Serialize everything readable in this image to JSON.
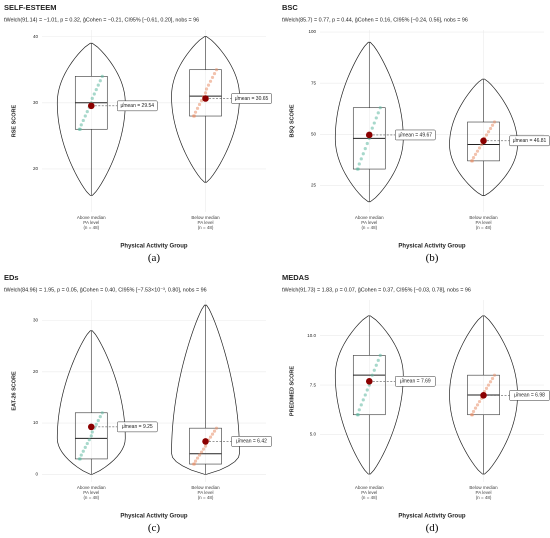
{
  "chart_data": [
    {
      "type": "violin",
      "title": "SELF-ESTEEM",
      "subtitle": "tWelch(91.14) = −1.01, p = 0.32, ĝCohen = −0.21, CI95% [−0.61, 0.20], nobs = 96",
      "y_label": "RSE SCORE",
      "x_label": "Physical Activity Group",
      "caption": "(a)",
      "categories": [
        "Above median\nPA level\n(n = 48)",
        "Below median\nPA level\n(n = 48)"
      ],
      "colors": [
        "#5fb8a0",
        "#e8906a"
      ],
      "min": [
        16,
        18
      ],
      "q1": [
        26,
        28
      ],
      "median": [
        30,
        31
      ],
      "q3": [
        34,
        35
      ],
      "max": [
        39,
        40
      ],
      "mean": [
        29.54,
        30.65
      ],
      "mean_labels": [
        "μ̂mean = 29.54",
        "μ̂mean = 30.65"
      ],
      "ylim": [
        13.5,
        41
      ],
      "yticks": [
        20,
        30,
        40
      ],
      "grid": true
    },
    {
      "type": "violin",
      "title": "BSC",
      "subtitle": "tWelch(85.7) = 0.77, p = 0.44, ĝCohen = 0.16, CI95% [−0.24, 0.56], nobs = 96",
      "y_label": "BSQ SCORE",
      "x_label": "Physical Activity Group",
      "caption": "(b)",
      "categories": [
        "Above median\nPA level\n(n = 48)",
        "Below median\nPA level\n(n = 48)"
      ],
      "colors": [
        "#5fb8a0",
        "#e8906a"
      ],
      "min": [
        17,
        20
      ],
      "q1": [
        33,
        37
      ],
      "median": [
        48,
        45
      ],
      "q3": [
        63,
        56
      ],
      "max": [
        95,
        77
      ],
      "mean": [
        49.67,
        46.81
      ],
      "mean_labels": [
        "μ̂mean = 49.67",
        "μ̂mean = 46.81"
      ],
      "ylim": [
        12,
        101
      ],
      "yticks": [
        25,
        50,
        75,
        100
      ],
      "grid": true
    },
    {
      "type": "violin",
      "title": "EDs",
      "subtitle": "tWelch(84.96) = 1.95, p = 0.05, ĝCohen = 0.40, CI95% [−7.53×10⁻³, 0.80], nobs = 96",
      "y_label": "EAT-26 SCORE",
      "x_label": "Physical Activity Group",
      "caption": "(c)",
      "categories": [
        "Above median\nPA level\n(n = 48)",
        "Below median\nPA level\n(n = 48)"
      ],
      "colors": [
        "#5fb8a0",
        "#e8906a"
      ],
      "min": [
        0,
        0
      ],
      "q1": [
        3,
        2
      ],
      "median": [
        7,
        4
      ],
      "q3": [
        12,
        9
      ],
      "max": [
        28,
        33
      ],
      "mean": [
        9.25,
        6.42
      ],
      "mean_labels": [
        "μ̂mean = 9.25",
        "μ̂mean = 6.42"
      ],
      "ylim": [
        -1.5,
        34
      ],
      "yticks": [
        0,
        10,
        20,
        30
      ],
      "grid": true
    },
    {
      "type": "violin",
      "title": "MEDAS",
      "subtitle": "tWelch(91.73) = 1.83, p = 0.07, ĝCohen = 0.37, CI95% [−0.03, 0.78], nobs = 96",
      "y_label": "PREDIMED SCORE",
      "x_label": "Physical Activity Group",
      "caption": "(d)",
      "categories": [
        "Above median\nPA level\n(n = 48)",
        "Below median\nPA level\n(n = 48)"
      ],
      "colors": [
        "#5fb8a0",
        "#e8906a"
      ],
      "min": [
        3,
        3
      ],
      "q1": [
        6,
        6
      ],
      "median": [
        8,
        7
      ],
      "q3": [
        9,
        8
      ],
      "max": [
        11,
        11
      ],
      "mean": [
        7.69,
        6.98
      ],
      "mean_labels": [
        "μ̂mean = 7.69",
        "μ̂mean = 6.98"
      ],
      "ylim": [
        2.6,
        11.8
      ],
      "yticks": [
        {
          "value": 5,
          "label": "5.0"
        },
        {
          "value": 7.5,
          "label": "7.5"
        },
        {
          "value": 10,
          "label": "10.0"
        }
      ],
      "grid": true
    }
  ]
}
